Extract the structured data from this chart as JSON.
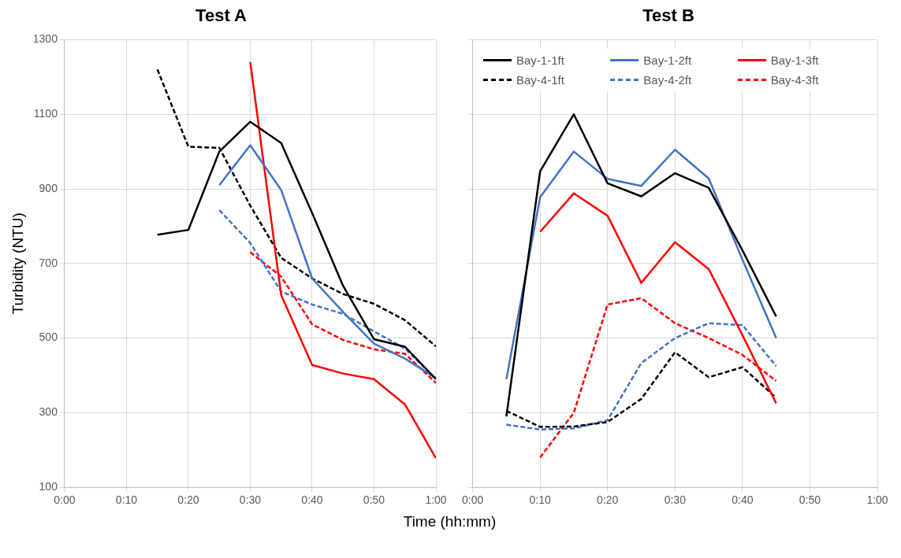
{
  "chart_data": [
    {
      "type": "line",
      "title": "Test A",
      "xlabel": "Time (hh:mm)",
      "ylabel": "Turbidity (NTU)",
      "grid": true,
      "legend": false,
      "marker": "none",
      "xlim": [
        0,
        1
      ],
      "xticks": [
        {
          "value": 0,
          "label": "0:00"
        },
        {
          "value": 0.1667,
          "label": "0:10"
        },
        {
          "value": 0.3333,
          "label": "0:20"
        },
        {
          "value": 0.5,
          "label": "0:30"
        },
        {
          "value": 0.6667,
          "label": "0:40"
        },
        {
          "value": 0.8333,
          "label": "0:50"
        },
        {
          "value": 1,
          "label": "1:00"
        }
      ],
      "ylim": [
        100,
        1300
      ],
      "yticks": [
        100,
        300,
        500,
        700,
        900,
        1100,
        1300
      ],
      "series": [
        {
          "color": "#000000",
          "line_style": "solid",
          "x": [
            0.25,
            0.3333,
            0.4167,
            0.5,
            0.5833,
            0.6667,
            0.75,
            0.8333,
            0.9167,
            1
          ],
          "values": [
            777,
            790,
            1000,
            1080,
            1023,
            835,
            640,
            497,
            477,
            390
          ]
        },
        {
          "color": "#4472c4",
          "line_style": "solid",
          "x": [
            0.4167,
            0.5,
            0.5833,
            0.6667,
            0.75,
            0.8333,
            0.9167,
            1
          ],
          "values": [
            910,
            1017,
            897,
            660,
            570,
            485,
            445,
            393
          ]
        },
        {
          "color": "#ff0000",
          "line_style": "solid",
          "x": [
            0.5,
            0.5833,
            0.6667,
            0.75,
            0.8333,
            0.9167,
            1
          ],
          "values": [
            1240,
            615,
            428,
            405,
            390,
            322,
            178
          ]
        },
        {
          "color": "#000000",
          "line_style": "dashed",
          "x": [
            0.25,
            0.3333,
            0.4167,
            0.5,
            0.5833,
            0.6667,
            0.75,
            0.8333,
            0.9167,
            1
          ],
          "values": [
            1220,
            1013,
            1010,
            855,
            715,
            660,
            618,
            592,
            548,
            478
          ]
        },
        {
          "color": "#4472c4",
          "line_style": "dashed",
          "x": [
            0.4167,
            0.5,
            0.5833,
            0.6667,
            0.75,
            0.8333,
            0.9167,
            1
          ],
          "values": [
            843,
            755,
            625,
            590,
            565,
            518,
            472,
            390
          ]
        },
        {
          "color": "#ff0000",
          "line_style": "dashed",
          "x": [
            0.5,
            0.5833,
            0.6667,
            0.75,
            0.8333,
            0.9167,
            1
          ],
          "values": [
            730,
            665,
            537,
            495,
            470,
            458,
            380
          ]
        }
      ]
    },
    {
      "type": "line",
      "title": "Test B",
      "grid": true,
      "legend": "top",
      "marker": "none",
      "tick_labels": "x",
      "xlim": [
        0,
        1
      ],
      "xticks": [
        {
          "value": 0,
          "label": "0:00"
        },
        {
          "value": 0.1667,
          "label": "0:10"
        },
        {
          "value": 0.3333,
          "label": "0:20"
        },
        {
          "value": 0.5,
          "label": "0:30"
        },
        {
          "value": 0.6667,
          "label": "0:40"
        },
        {
          "value": 0.8333,
          "label": "0:50"
        },
        {
          "value": 1,
          "label": "1:00"
        }
      ],
      "ylim": [
        100,
        1300
      ],
      "yticks": [
        100,
        300,
        500,
        700,
        900,
        1100,
        1300
      ],
      "series": [
        {
          "name": "Bay-1-1ft",
          "color": "#000000",
          "line_style": "solid",
          "x": [
            0.0833,
            0.1667,
            0.25,
            0.3333,
            0.4167,
            0.5,
            0.5833,
            0.6667,
            0.75
          ],
          "values": [
            290,
            947,
            1100,
            915,
            880,
            942,
            903,
            735,
            558
          ]
        },
        {
          "name": "Bay-1-2ft",
          "color": "#4472c4",
          "line_style": "solid",
          "x": [
            0.0833,
            0.1667,
            0.25,
            0.3333,
            0.4167,
            0.5,
            0.5833,
            0.6667,
            0.75
          ],
          "values": [
            390,
            878,
            1000,
            927,
            908,
            1005,
            928,
            710,
            500
          ]
        },
        {
          "name": "Bay-1-3ft",
          "color": "#ff0000",
          "line_style": "solid",
          "x": [
            0.1667,
            0.25,
            0.3333,
            0.4167,
            0.5,
            0.5833,
            0.6667,
            0.75
          ],
          "values": [
            785,
            888,
            828,
            648,
            757,
            685,
            508,
            325
          ]
        },
        {
          "name": "Bay-4-1ft",
          "color": "#000000",
          "line_style": "dashed",
          "x": [
            0.0833,
            0.1667,
            0.25,
            0.3333,
            0.4167,
            0.5,
            0.5833,
            0.6667,
            0.75
          ],
          "values": [
            305,
            262,
            263,
            275,
            337,
            462,
            395,
            422,
            340
          ]
        },
        {
          "name": "Bay-4-2ft",
          "color": "#4472c4",
          "line_style": "dashed",
          "x": [
            0.0833,
            0.1667,
            0.25,
            0.3333,
            0.4167,
            0.5,
            0.5833,
            0.6667,
            0.75
          ],
          "values": [
            268,
            255,
            258,
            280,
            433,
            500,
            540,
            535,
            425
          ]
        },
        {
          "name": "Bay-4-3ft",
          "color": "#ff0000",
          "line_style": "dashed",
          "x": [
            0.1667,
            0.25,
            0.3333,
            0.4167,
            0.5,
            0.5833,
            0.6667,
            0.75
          ],
          "values": [
            180,
            300,
            590,
            607,
            540,
            500,
            455,
            385
          ]
        }
      ]
    }
  ]
}
